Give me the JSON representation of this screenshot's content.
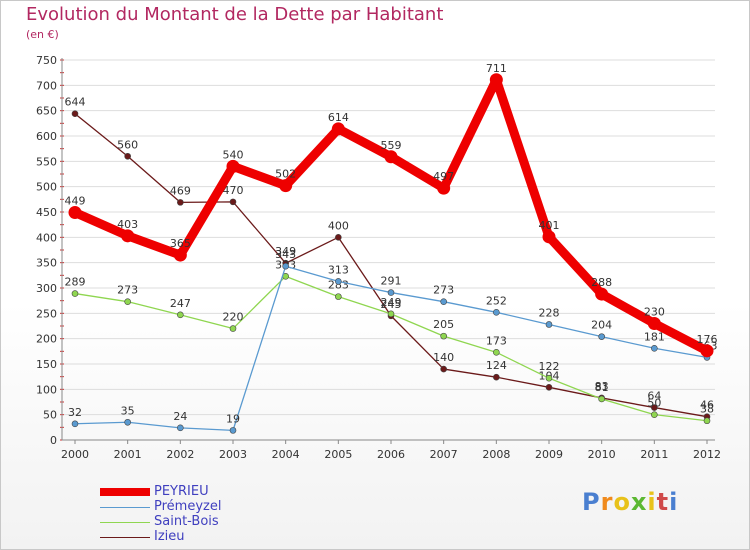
{
  "header": {
    "title": "Evolution du Montant de la Dette par Habitant",
    "unit": "(en €)"
  },
  "logo": {
    "letters": [
      "P",
      "r",
      "o",
      "x",
      "i",
      "t",
      "i"
    ],
    "colors": [
      "#4a7fd0",
      "#f08a1c",
      "#e8c21a",
      "#5cb832",
      "#e8c21a",
      "#d04a4a",
      "#4a7fd0"
    ]
  },
  "chart_data": {
    "type": "line",
    "title": "Evolution du Montant de la Dette par Habitant",
    "subtitle": "(en €)",
    "xlabel": "",
    "ylabel": "",
    "ylim": [
      0,
      750
    ],
    "yticks": [
      0,
      50,
      100,
      150,
      200,
      250,
      300,
      350,
      400,
      450,
      500,
      550,
      600,
      650,
      700,
      750
    ],
    "grid": true,
    "legend_position": "bottom-left",
    "x": [
      "2000",
      "2001",
      "2002",
      "2003",
      "2004",
      "2005",
      "2006",
      "2007",
      "2008",
      "2009",
      "2010",
      "2011",
      "2012"
    ],
    "series": [
      {
        "name": "Izieu",
        "color": "#6b1a1a",
        "values": [
          644,
          560,
          469,
          470,
          349,
          400,
          245,
          140,
          124,
          104,
          83,
          64,
          46
        ]
      },
      {
        "name": "Saint-Bois",
        "color": "#8fd650",
        "values": [
          289,
          273,
          247,
          220,
          323,
          283,
          249,
          205,
          173,
          122,
          81,
          50,
          38
        ]
      },
      {
        "name": "Prémeyzel",
        "color": "#5a9ad0",
        "values": [
          32,
          35,
          24,
          19,
          343,
          313,
          291,
          273,
          252,
          228,
          204,
          181,
          163
        ]
      },
      {
        "name": "PEYRIEU",
        "color": "#ee0000",
        "values": [
          449,
          403,
          365,
          540,
          502,
          614,
          559,
          497,
          711,
          401,
          288,
          230,
          176
        ]
      }
    ]
  }
}
